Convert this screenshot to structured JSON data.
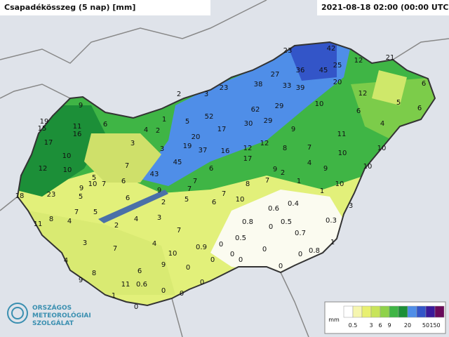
{
  "header": {
    "title": "Csapadékösszeg (5 nap) [mm]",
    "timestamp": "2021-08-18 02:00 (00:00 UTC)"
  },
  "stations": [
    "23",
    "42",
    "21",
    "12",
    "36",
    "45",
    "25",
    "27",
    "38",
    "33",
    "39",
    "20",
    "6",
    "2",
    "3",
    "23",
    "12",
    "5",
    "6",
    "9",
    "10",
    "62",
    "29",
    "52",
    "6",
    "1",
    "5",
    "30",
    "29",
    "19",
    "15",
    "11",
    "16",
    "6",
    "4",
    "2",
    "17",
    "9",
    "4",
    "3",
    "20",
    "19",
    "37",
    "16",
    "12",
    "12",
    "8",
    "7",
    "11",
    "17",
    "3",
    "45",
    "17",
    "10",
    "10",
    "12",
    "10",
    "10",
    "7",
    "6",
    "9",
    "2",
    "4",
    "9",
    "10",
    "5",
    "43",
    "7",
    "8",
    "7",
    "1",
    "10",
    "18",
    "23",
    "9",
    "5",
    "10",
    "7",
    "6",
    "9",
    "7",
    "7",
    "6",
    "10",
    "1",
    "6",
    "5",
    "2",
    "3",
    "0.6",
    "0.4",
    "11",
    "8",
    "4",
    "7",
    "5",
    "2",
    "4",
    "3",
    "0.8",
    "0.5",
    "0.3",
    "7",
    "0",
    "0.7",
    "3",
    "7",
    "4",
    "10",
    "0.9",
    "0",
    "0.5",
    "1",
    "4",
    "8",
    "6",
    "9",
    "0",
    "0",
    "0",
    "0.8",
    "0",
    "0",
    "0",
    "0",
    "9",
    "11",
    "0.6",
    "0",
    "1",
    "0",
    "0",
    "0"
  ],
  "legend": {
    "unit": "mm",
    "ticks": [
      "0.5",
      "3",
      "6",
      "9",
      "20",
      "50",
      "150"
    ]
  },
  "logo": {
    "lines": [
      "ORSZÁGOS",
      "METEOROLÓGIAI",
      "SZOLGÁLAT"
    ]
  }
}
